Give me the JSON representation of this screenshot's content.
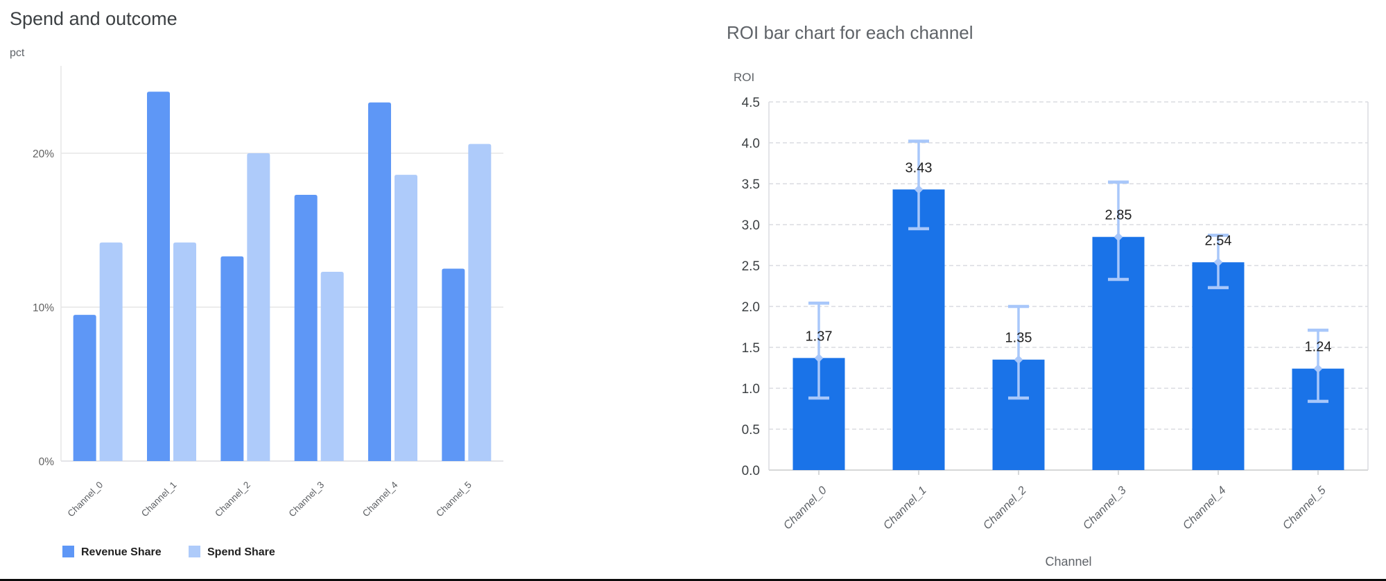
{
  "page": {
    "background": "#ffffff",
    "bottom_border_color": "#0b0b0b"
  },
  "chart_data": [
    {
      "type": "bar",
      "variant": "grouped-vertical",
      "title": "Spend and outcome",
      "y_axis_label": "pct",
      "x_axis_label": "",
      "categories": [
        "Channel_0",
        "Channel_1",
        "Channel_2",
        "Channel_3",
        "Channel_4",
        "Channel_5"
      ],
      "series": [
        {
          "name": "Revenue Share",
          "color": "#5e97f6",
          "values": [
            9.5,
            24.0,
            13.3,
            17.3,
            23.3,
            12.5
          ]
        },
        {
          "name": "Spend Share",
          "color": "#aecbfa",
          "values": [
            14.2,
            14.2,
            20.0,
            12.3,
            18.6,
            20.6
          ]
        }
      ],
      "unit": "%",
      "y_ticks": {
        "values": [
          0,
          10,
          20
        ],
        "labels": [
          "0%",
          "10%",
          "20%"
        ]
      },
      "ylim": [
        0,
        26
      ],
      "grid": "solid",
      "grid_color": "#e6e6e6",
      "axis_line_color": "#dadce0",
      "tick_label_color": "#616161",
      "category_label_color": "#5b5e62",
      "legend_position": "bottom",
      "legend_text_color": "#1f1f1f"
    },
    {
      "type": "bar",
      "variant": "vertical-with-error-bars",
      "title": "ROI bar chart for each channel",
      "y_axis_label": "ROI",
      "x_axis_label": "Channel",
      "categories": [
        "Channel_0",
        "Channel_1",
        "Channel_2",
        "Channel_3",
        "Channel_4",
        "Channel_5"
      ],
      "series": [
        {
          "name": "ROI",
          "color": "#1a73e8",
          "values": [
            1.37,
            3.43,
            1.35,
            2.85,
            2.54,
            1.24
          ]
        }
      ],
      "data_labels": [
        "1.37",
        "3.43",
        "1.35",
        "2.85",
        "2.54",
        "1.24"
      ],
      "data_label_color": "#1f1f1f",
      "error_bars": {
        "color": "#a8c7fa",
        "lower": [
          0.88,
          2.95,
          0.88,
          2.33,
          2.23,
          0.84
        ],
        "upper": [
          2.04,
          4.02,
          2.0,
          3.52,
          2.87,
          1.71
        ]
      },
      "y_ticks": {
        "values": [
          0,
          0.5,
          1,
          1.5,
          2,
          2.5,
          3,
          3.5,
          4,
          4.5
        ],
        "labels": [
          "0.0",
          "0.5",
          "1.0",
          "1.5",
          "2.0",
          "2.5",
          "3.0",
          "3.5",
          "4.0",
          "4.5"
        ]
      },
      "ylim": [
        0,
        4.5
      ],
      "grid": "dashed",
      "grid_color": "#dadce0",
      "axis_line_color": "#c8cacc",
      "plot_border_color": "#dadce0",
      "tick_label_color": "#3c4043",
      "category_label_color": "#5f6368",
      "category_label_style": "italic"
    }
  ]
}
